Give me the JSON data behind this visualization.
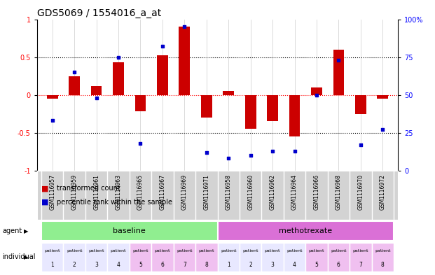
{
  "title": "GDS5069 / 1554016_a_at",
  "sample_ids": [
    "GSM1116957",
    "GSM1116959",
    "GSM1116961",
    "GSM1116963",
    "GSM1116965",
    "GSM1116967",
    "GSM1116969",
    "GSM1116971",
    "GSM1116958",
    "GSM1116960",
    "GSM1116962",
    "GSM1116964",
    "GSM1116966",
    "GSM1116968",
    "GSM1116970",
    "GSM1116972"
  ],
  "transformed_count": [
    -0.05,
    0.25,
    0.12,
    0.43,
    -0.22,
    0.52,
    0.9,
    -0.3,
    0.05,
    -0.45,
    -0.35,
    -0.55,
    0.1,
    0.6,
    -0.25,
    -0.05
  ],
  "percentile_rank": [
    33,
    65,
    48,
    75,
    18,
    82,
    95,
    12,
    8,
    10,
    13,
    13,
    50,
    73,
    17,
    27
  ],
  "bar_color": "#cc0000",
  "dot_color": "#0000cc",
  "groups": [
    {
      "label": "baseline",
      "start": 0,
      "end": 8,
      "color": "#90ee90"
    },
    {
      "label": "methotrexate",
      "start": 8,
      "end": 16,
      "color": "#da70d6"
    }
  ],
  "patients": [
    1,
    2,
    3,
    4,
    5,
    6,
    7,
    8,
    1,
    2,
    3,
    4,
    5,
    6,
    7,
    8
  ],
  "patient_colors_baseline": [
    "#e8e8ff",
    "#e8e8ff",
    "#e8e8ff",
    "#e8e8ff",
    "#f0c0f0",
    "#f0c0f0",
    "#f0c0f0",
    "#f0c0f0"
  ],
  "patient_colors_methotrexate": [
    "#e8e8ff",
    "#e8e8ff",
    "#e8e8ff",
    "#e8e8ff",
    "#f0c0f0",
    "#f0c0f0",
    "#f0c0f0",
    "#f0c0f0"
  ],
  "ylim": [
    -1,
    1
  ],
  "y2lim": [
    0,
    100
  ],
  "yticks": [
    -1,
    -0.5,
    0,
    0.5,
    1
  ],
  "ytick_labels": [
    "-1",
    "-0.5",
    "0",
    "0.5",
    "1"
  ],
  "y2ticks": [
    0,
    25,
    50,
    75,
    100
  ],
  "y2tick_labels": [
    "0",
    "25",
    "50",
    "75",
    "100%"
  ],
  "bar_width": 0.5,
  "legend_items": [
    {
      "label": "transformed count",
      "color": "#cc0000"
    },
    {
      "label": "percentile rank within the sample",
      "color": "#0000cc"
    }
  ],
  "xgrid_color": "#cccccc",
  "plot_bg": "white",
  "fig_bg": "white",
  "title_fontsize": 10,
  "tick_fontsize": 7,
  "header_bg": "#d3d3d3"
}
